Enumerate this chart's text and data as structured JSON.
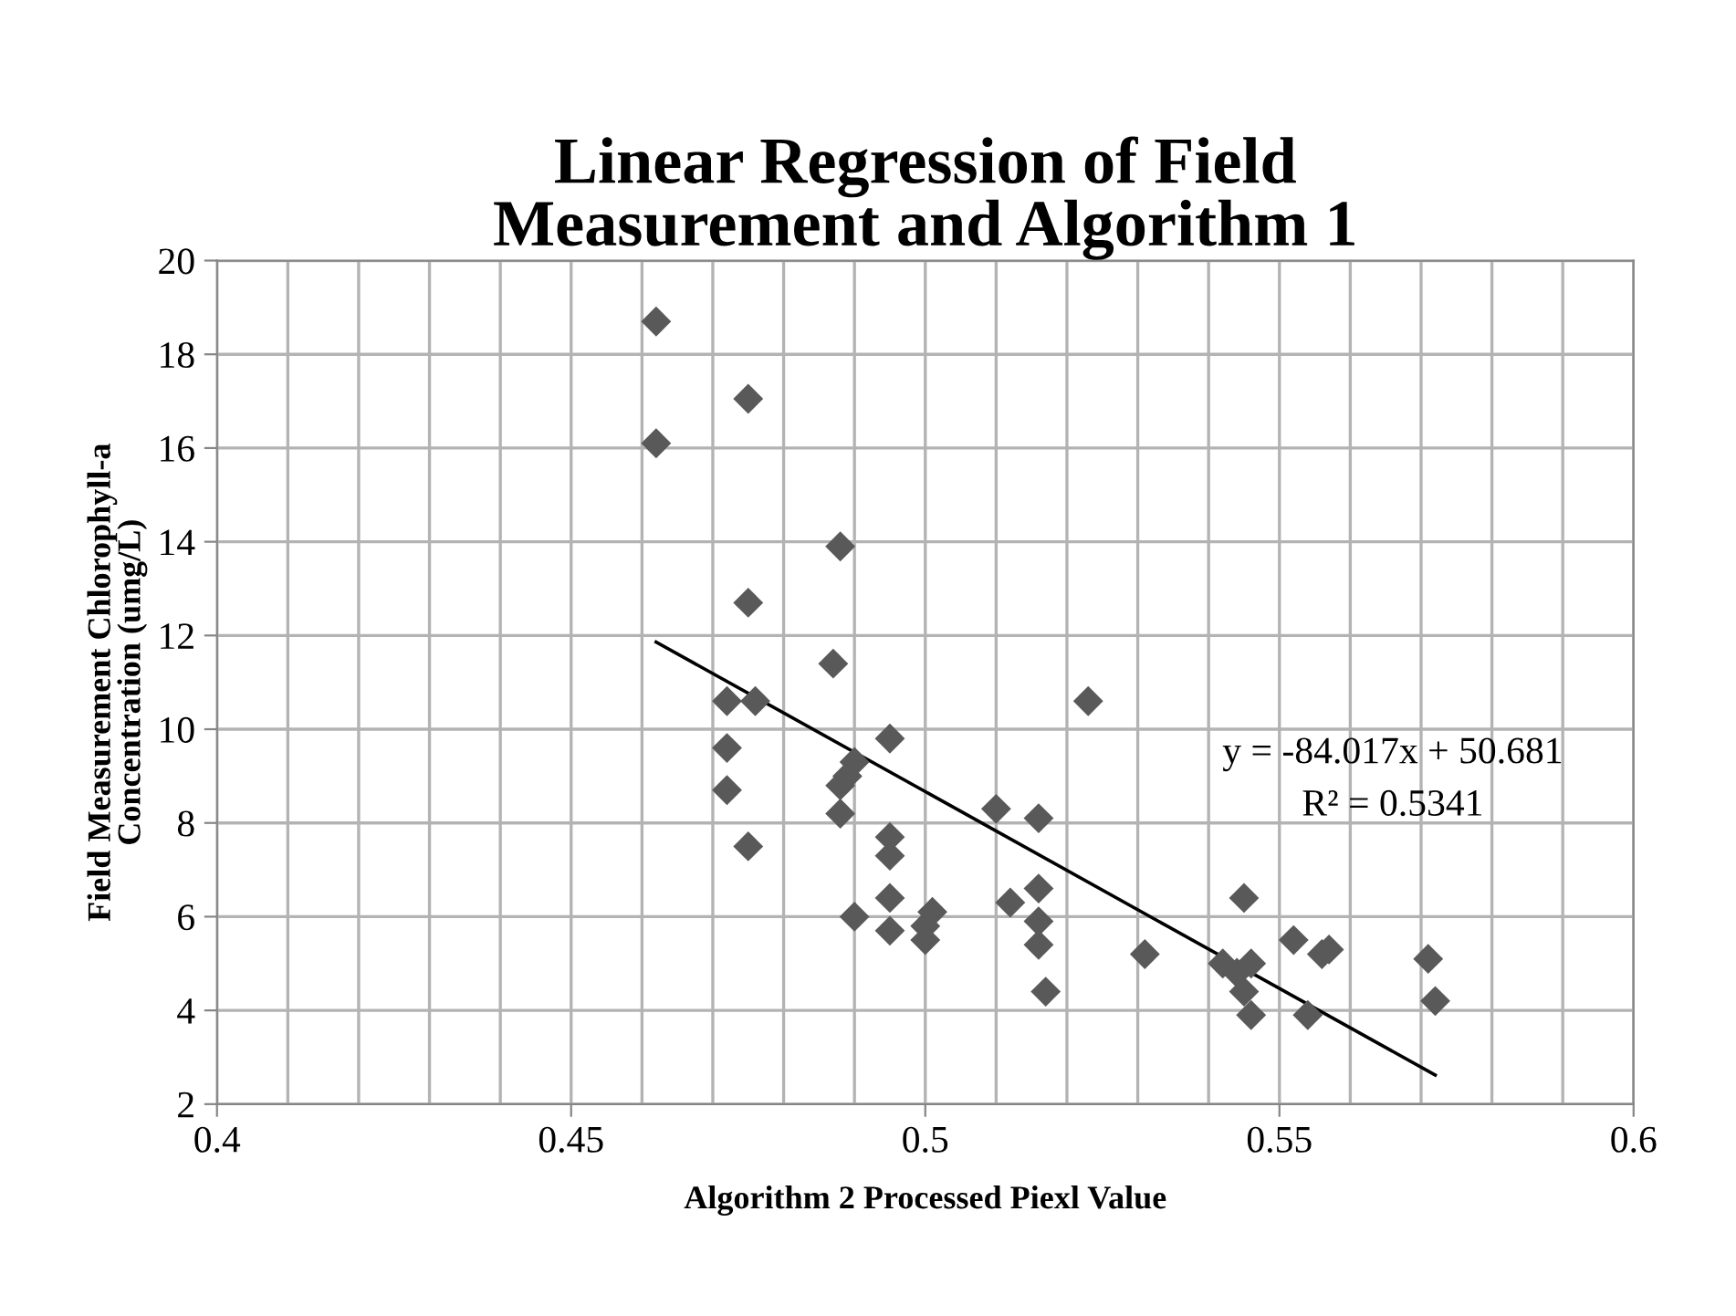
{
  "chart_data": {
    "type": "scatter",
    "title": "Linear Regression of Field\nMeasurement and Algorithm 1",
    "xlabel": "Algorithm 2 Processed Piexl Value",
    "ylabel": "Field Measurement Chlorophyll-a\nConcentration (umg/L)",
    "annotations": [
      "y = -84.017x + 50.681",
      "R² = 0.5341"
    ],
    "xlim": [
      0.4,
      0.6
    ],
    "xticks": [
      0.4,
      {
        "value": 0.41,
        "label": null
      },
      {
        "value": 0.42,
        "label": null
      },
      {
        "value": 0.43,
        "label": null
      },
      {
        "value": 0.44,
        "label": null
      },
      0.45,
      {
        "value": 0.46,
        "label": null
      },
      {
        "value": 0.47,
        "label": null
      },
      {
        "value": 0.48,
        "label": null
      },
      {
        "value": 0.49,
        "label": null
      },
      0.5,
      {
        "value": 0.51,
        "label": null
      },
      {
        "value": 0.52,
        "label": null
      },
      {
        "value": 0.53,
        "label": null
      },
      {
        "value": 0.54,
        "label": null
      },
      0.55,
      {
        "value": 0.56,
        "label": null
      },
      {
        "value": 0.57,
        "label": null
      },
      {
        "value": 0.58,
        "label": null
      },
      {
        "value": 0.59,
        "label": null
      },
      0.6
    ],
    "ylim": [
      2,
      20
    ],
    "yticks": [
      2,
      4,
      6,
      8,
      10,
      12,
      14,
      16,
      18,
      20
    ],
    "grid": true,
    "series": [
      {
        "marker": "diamond",
        "color": "#595959",
        "x": [
          0.462,
          0.462,
          0.475,
          0.488,
          0.475,
          0.487,
          0.472,
          0.476,
          0.472,
          0.472,
          0.475,
          0.495,
          0.49,
          0.489,
          0.488,
          0.488,
          0.495,
          0.495,
          0.495,
          0.49,
          0.495,
          0.5,
          0.501,
          0.5,
          0.51,
          0.516,
          0.523,
          0.512,
          0.516,
          0.516,
          0.516,
          0.517,
          0.531,
          0.542,
          0.545,
          0.544,
          0.546,
          0.545,
          0.546,
          0.552,
          0.554,
          0.556,
          0.557,
          0.571,
          0.572
        ],
        "values": [
          18.7,
          16.1,
          17.05,
          13.9,
          12.7,
          11.4,
          10.6,
          10.6,
          9.6,
          8.7,
          7.5,
          9.8,
          9.3,
          9.0,
          8.8,
          8.2,
          7.7,
          7.3,
          6.4,
          6.0,
          5.7,
          5.5,
          6.1,
          5.8,
          8.3,
          8.1,
          10.6,
          6.3,
          6.6,
          5.9,
          5.4,
          4.4,
          5.2,
          5.0,
          6.4,
          4.8,
          5.0,
          4.4,
          3.9,
          5.5,
          3.9,
          5.2,
          5.3,
          5.1,
          4.2
        ]
      },
      {
        "type": "line",
        "color": "#000000",
        "line_style": "solid",
        "marker": "none",
        "x": [
          0.462,
          0.572
        ],
        "values": [
          11.86,
          2.62
        ]
      }
    ]
  }
}
